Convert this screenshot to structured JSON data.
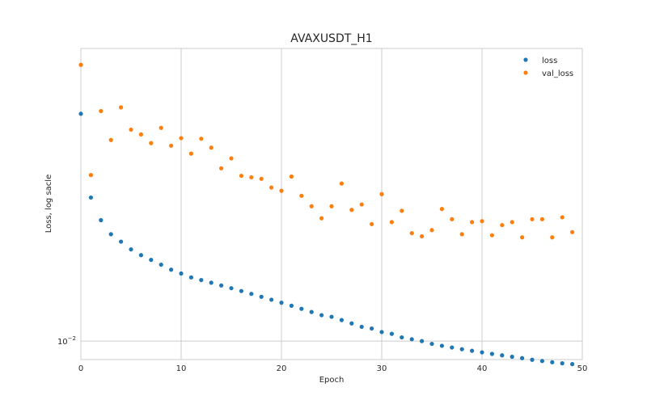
{
  "chart_data": {
    "type": "scatter",
    "title": "AVAXUSDT_H1",
    "xlabel": "Epoch",
    "ylabel": "Loss, log sacle",
    "xlim": [
      0,
      50
    ],
    "ylim": [
      0.00905,
      0.0485
    ],
    "yscale": "log",
    "xticks": [
      0,
      10,
      20,
      30,
      40,
      50
    ],
    "yticks": [
      {
        "value": 0.01,
        "base": "10",
        "exponent": "−2"
      }
    ],
    "grid": true,
    "legend_position": "top-right",
    "series": [
      {
        "name": "loss",
        "color": "#1f77b4",
        "x": [
          0,
          1,
          2,
          3,
          4,
          5,
          6,
          7,
          8,
          9,
          10,
          11,
          12,
          13,
          14,
          15,
          16,
          17,
          18,
          19,
          20,
          21,
          22,
          23,
          24,
          25,
          26,
          27,
          28,
          29,
          30,
          31,
          32,
          33,
          34,
          35,
          36,
          37,
          38,
          39,
          40,
          41,
          42,
          43,
          44,
          45,
          46,
          47,
          48,
          49
        ],
        "y": [
          0.0341,
          0.0217,
          0.0192,
          0.0178,
          0.0171,
          0.0164,
          0.0159,
          0.0155,
          0.0151,
          0.0147,
          0.0144,
          0.0141,
          0.0139,
          0.0137,
          0.0135,
          0.0133,
          0.0131,
          0.0129,
          0.0127,
          0.0125,
          0.0123,
          0.0121,
          0.0119,
          0.0117,
          0.0115,
          0.0114,
          0.0112,
          0.011,
          0.0108,
          0.0107,
          0.0105,
          0.0104,
          0.0102,
          0.0101,
          0.01,
          0.00985,
          0.00975,
          0.00966,
          0.00957,
          0.00949,
          0.00941,
          0.00933,
          0.00926,
          0.00919,
          0.00912,
          0.00904,
          0.00898,
          0.00892,
          0.00887,
          0.00883
        ]
      },
      {
        "name": "val_loss",
        "color": "#ff7f0e",
        "x": [
          0,
          1,
          2,
          3,
          4,
          5,
          6,
          7,
          8,
          9,
          10,
          11,
          12,
          13,
          14,
          15,
          16,
          17,
          18,
          19,
          20,
          21,
          22,
          23,
          24,
          25,
          26,
          27,
          28,
          29,
          30,
          31,
          32,
          33,
          34,
          35,
          36,
          37,
          38,
          39,
          40,
          41,
          42,
          43,
          44,
          45,
          46,
          47,
          48,
          49
        ],
        "y": [
          0.0444,
          0.0245,
          0.0346,
          0.0296,
          0.0353,
          0.0313,
          0.0305,
          0.0291,
          0.0316,
          0.0287,
          0.0299,
          0.0275,
          0.0298,
          0.0284,
          0.0254,
          0.0268,
          0.0244,
          0.0242,
          0.024,
          0.0229,
          0.0225,
          0.0243,
          0.0219,
          0.0207,
          0.0194,
          0.0207,
          0.0234,
          0.0203,
          0.0209,
          0.0188,
          0.0221,
          0.019,
          0.0202,
          0.0179,
          0.0176,
          0.0182,
          0.0204,
          0.0193,
          0.0178,
          0.019,
          0.0191,
          0.0177,
          0.0187,
          0.019,
          0.0175,
          0.0193,
          0.0193,
          0.0175,
          0.0195,
          0.018
        ]
      }
    ]
  }
}
